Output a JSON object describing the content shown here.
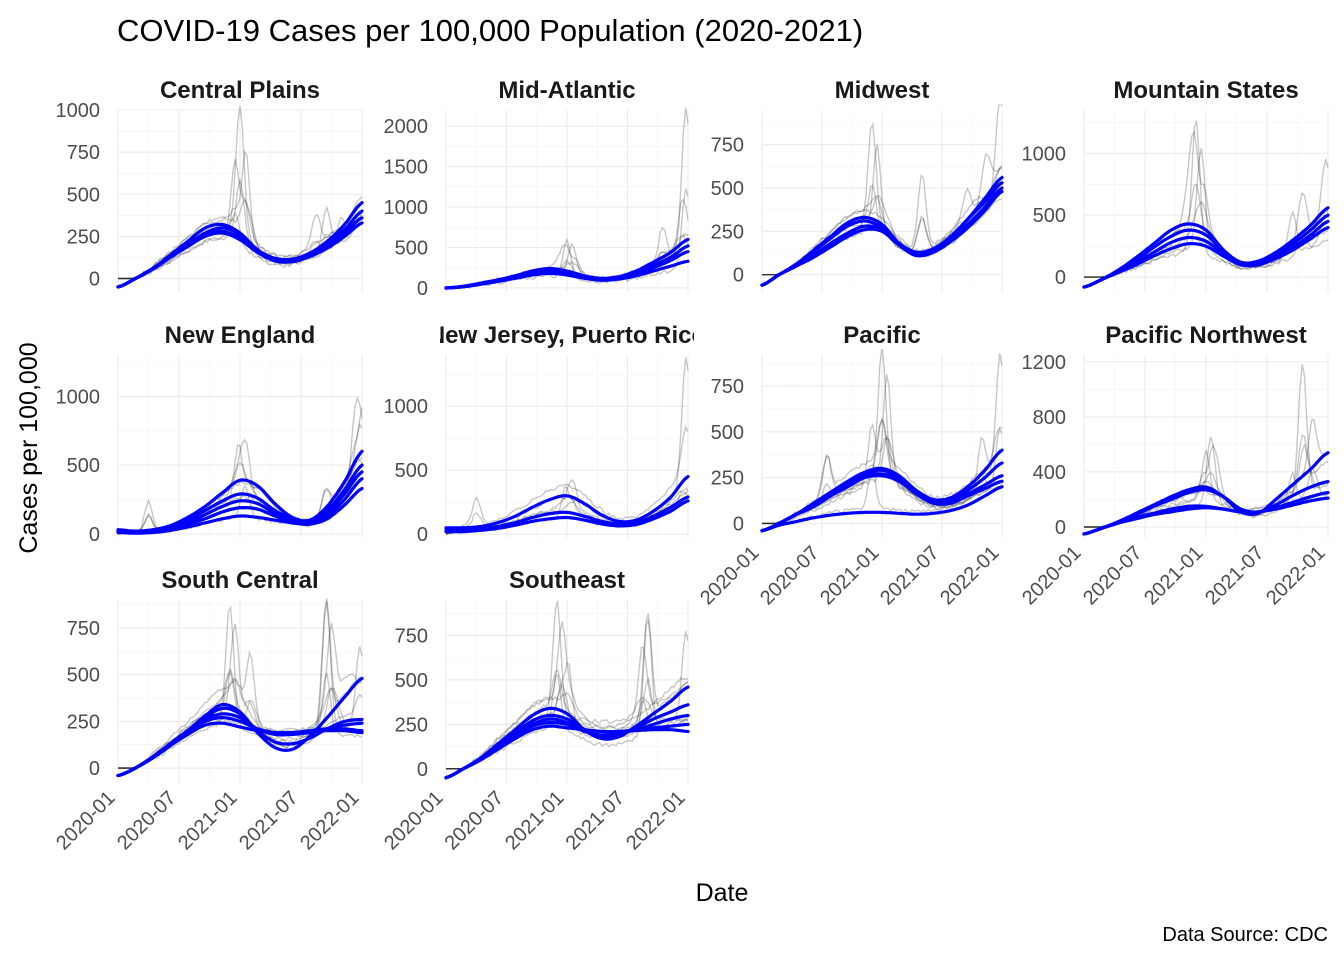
{
  "chart_data": {
    "type": "line",
    "title": "COVID-19 Cases per 100,000 Population (2020-2021)",
    "xlabel": "Date",
    "ylabel": "Cases per 100,000",
    "caption": "Data Source: CDC",
    "x_ticks": [
      "2020-01",
      "2020-07",
      "2021-01",
      "2021-07",
      "2022-01"
    ],
    "x_range": [
      "2020-01",
      "2022-01"
    ],
    "grid": true,
    "layout": "facet grid 4 columns, 3 rows",
    "colors": {
      "raw_series": "#000000",
      "smoothed_trend": "#0000ff"
    },
    "facets": [
      {
        "name": "Central Plains",
        "ylim": [
          -80,
          1000
        ],
        "y_ticks": [
          0,
          250,
          500,
          750,
          1000
        ],
        "raw_peaks": [
          [
            12,
            980
          ],
          [
            12.5,
            760
          ],
          [
            11.5,
            640
          ],
          [
            20.5,
            380
          ],
          [
            19.5,
            340
          ],
          [
            22,
            310
          ]
        ],
        "smoothed_series": [
          [
            -50,
            0,
            60,
            140,
            220,
            300,
            320,
            270,
            170,
            110,
            110,
            150,
            220,
            320,
            450
          ],
          [
            -50,
            0,
            60,
            130,
            200,
            270,
            300,
            260,
            170,
            120,
            115,
            150,
            210,
            290,
            400
          ],
          [
            -50,
            0,
            60,
            130,
            200,
            260,
            280,
            240,
            160,
            110,
            110,
            140,
            200,
            270,
            360
          ],
          [
            -50,
            0,
            55,
            125,
            190,
            250,
            270,
            230,
            155,
            105,
            100,
            130,
            180,
            250,
            330
          ]
        ]
      },
      {
        "name": "Mid-Atlantic",
        "ylim": [
          -50,
          2200
        ],
        "y_ticks": [
          0,
          500,
          1000,
          1500,
          2000
        ],
        "raw_peaks": [
          [
            12,
            560
          ],
          [
            12.5,
            520
          ],
          [
            21.5,
            700
          ],
          [
            23.8,
            2150
          ],
          [
            23.5,
            1000
          ]
        ],
        "smoothed_series": [
          [
            0,
            20,
            60,
            100,
            150,
            210,
            240,
            210,
            150,
            120,
            140,
            210,
            320,
            440,
            600
          ],
          [
            0,
            20,
            55,
            95,
            140,
            190,
            210,
            190,
            140,
            110,
            130,
            190,
            280,
            380,
            520
          ],
          [
            0,
            15,
            50,
            90,
            130,
            180,
            200,
            180,
            135,
            105,
            120,
            170,
            250,
            340,
            450
          ],
          [
            0,
            15,
            45,
            80,
            120,
            160,
            180,
            160,
            120,
            95,
            110,
            150,
            210,
            270,
            330
          ]
        ]
      },
      {
        "name": "Midwest",
        "ylim": [
          -100,
          950
        ],
        "y_ticks": [
          0,
          250,
          500,
          750
        ],
        "raw_peaks": [
          [
            11,
            830
          ],
          [
            11.5,
            700
          ],
          [
            16,
            550
          ],
          [
            23.8,
            930
          ],
          [
            20.5,
            420
          ],
          [
            22.5,
            600
          ]
        ],
        "smoothed_series": [
          [
            -60,
            0,
            60,
            140,
            220,
            300,
            330,
            290,
            180,
            120,
            140,
            210,
            320,
            440,
            560
          ],
          [
            -60,
            0,
            60,
            130,
            210,
            280,
            310,
            270,
            180,
            130,
            150,
            220,
            320,
            420,
            530
          ],
          [
            -60,
            0,
            50,
            110,
            180,
            240,
            280,
            260,
            180,
            120,
            140,
            200,
            290,
            390,
            500
          ],
          [
            -60,
            0,
            50,
            100,
            160,
            220,
            260,
            250,
            170,
            110,
            130,
            190,
            270,
            370,
            480
          ]
        ]
      },
      {
        "name": "Mountain States",
        "ylim": [
          -120,
          1350
        ],
        "y_ticks": [
          0,
          500,
          1000
        ],
        "raw_peaks": [
          [
            11,
            1250
          ],
          [
            11.5,
            1000
          ],
          [
            20.5,
            480
          ],
          [
            21.5,
            620
          ],
          [
            23.8,
            850
          ]
        ],
        "smoothed_series": [
          [
            -80,
            -20,
            60,
            160,
            270,
            380,
            430,
            380,
            220,
            120,
            130,
            200,
            300,
            420,
            560
          ],
          [
            -80,
            -20,
            50,
            140,
            240,
            330,
            380,
            340,
            210,
            120,
            120,
            180,
            270,
            380,
            500
          ],
          [
            -80,
            -20,
            50,
            120,
            200,
            280,
            320,
            290,
            190,
            110,
            110,
            160,
            240,
            340,
            450
          ],
          [
            -80,
            -20,
            40,
            100,
            170,
            230,
            270,
            250,
            170,
            100,
            100,
            150,
            220,
            310,
            400
          ]
        ]
      },
      {
        "name": "New England",
        "ylim": [
          -30,
          1300
        ],
        "y_ticks": [
          0,
          500,
          1000
        ],
        "raw_peaks": [
          [
            3,
            230
          ],
          [
            12,
            800
          ],
          [
            12.5,
            600
          ],
          [
            20.5,
            300
          ],
          [
            23.8,
            1270
          ],
          [
            23.5,
            850
          ]
        ],
        "smoothed_series": [
          [
            30,
            20,
            30,
            60,
            120,
            200,
            300,
            390,
            350,
            220,
            120,
            100,
            200,
            380,
            600
          ],
          [
            25,
            15,
            25,
            50,
            100,
            170,
            240,
            290,
            260,
            170,
            110,
            90,
            170,
            320,
            500
          ],
          [
            20,
            10,
            20,
            40,
            80,
            140,
            200,
            240,
            220,
            150,
            100,
            90,
            150,
            290,
            450
          ],
          [
            15,
            10,
            15,
            35,
            70,
            110,
            160,
            190,
            180,
            130,
            90,
            80,
            130,
            250,
            400
          ],
          [
            10,
            5,
            10,
            25,
            50,
            80,
            110,
            130,
            120,
            100,
            80,
            70,
            110,
            210,
            330
          ]
        ]
      },
      {
        "name": "New Jersey, Puerto Rico",
        "ylim": [
          -30,
          1400
        ],
        "y_ticks": [
          0,
          500,
          1000
        ],
        "raw_peaks": [
          [
            3,
            270
          ],
          [
            12,
            430
          ],
          [
            12.5,
            380
          ],
          [
            23.8,
            1300
          ],
          [
            23.5,
            520
          ]
        ],
        "smoothed_series": [
          [
            50,
            50,
            60,
            90,
            140,
            210,
            270,
            300,
            240,
            150,
            100,
            110,
            180,
            290,
            450
          ],
          [
            30,
            30,
            40,
            60,
            90,
            130,
            160,
            170,
            140,
            100,
            80,
            90,
            140,
            210,
            290
          ],
          [
            20,
            20,
            30,
            45,
            70,
            100,
            120,
            130,
            110,
            80,
            65,
            75,
            120,
            180,
            260
          ]
        ]
      },
      {
        "name": "Pacific",
        "ylim": [
          -80,
          920
        ],
        "y_ticks": [
          0,
          250,
          500,
          750
        ],
        "raw_peaks": [
          [
            12,
            920
          ],
          [
            12.5,
            780
          ],
          [
            11,
            500
          ],
          [
            6.5,
            340
          ],
          [
            23.8,
            870
          ],
          [
            22,
            430
          ]
        ],
        "smoothed_series": [
          [
            -40,
            0,
            50,
            110,
            170,
            230,
            280,
            300,
            260,
            180,
            130,
            140,
            200,
            290,
            400
          ],
          [
            -40,
            0,
            50,
            100,
            160,
            220,
            270,
            290,
            250,
            170,
            120,
            130,
            180,
            250,
            330
          ],
          [
            -40,
            0,
            50,
            100,
            160,
            210,
            260,
            270,
            240,
            170,
            120,
            120,
            160,
            210,
            260
          ],
          [
            -40,
            0,
            50,
            90,
            150,
            200,
            250,
            260,
            230,
            160,
            110,
            110,
            150,
            190,
            230
          ],
          [
            -40,
            -10,
            10,
            30,
            45,
            55,
            60,
            60,
            55,
            50,
            55,
            70,
            100,
            150,
            200
          ]
        ]
      },
      {
        "name": "Pacific Northwest",
        "ylim": [
          -80,
          1250
        ],
        "y_ticks": [
          0,
          400,
          800,
          1200
        ],
        "raw_peaks": [
          [
            12.5,
            630
          ],
          [
            12,
            520
          ],
          [
            21.5,
            1150
          ],
          [
            22.5,
            700
          ],
          [
            20.5,
            350
          ]
        ],
        "smoothed_series": [
          [
            -50,
            -10,
            40,
            100,
            160,
            220,
            270,
            290,
            220,
            110,
            100,
            200,
            310,
            420,
            540
          ],
          [
            -50,
            -10,
            40,
            90,
            150,
            200,
            250,
            270,
            220,
            130,
            110,
            160,
            230,
            290,
            330
          ],
          [
            -50,
            -10,
            30,
            70,
            100,
            130,
            150,
            150,
            130,
            110,
            110,
            140,
            180,
            220,
            250
          ],
          [
            -50,
            -10,
            30,
            60,
            90,
            110,
            130,
            140,
            130,
            110,
            110,
            130,
            160,
            190,
            210
          ]
        ]
      },
      {
        "name": "South Central",
        "ylim": [
          -80,
          900
        ],
        "y_ticks": [
          0,
          250,
          500,
          750
        ],
        "raw_peaks": [
          [
            11,
            830
          ],
          [
            11.5,
            720
          ],
          [
            13,
            560
          ],
          [
            20.5,
            850
          ],
          [
            21,
            700
          ],
          [
            23.8,
            620
          ]
        ],
        "smoothed_series": [
          [
            -40,
            0,
            60,
            130,
            200,
            280,
            340,
            300,
            190,
            110,
            100,
            170,
            270,
            380,
            480
          ],
          [
            -40,
            0,
            60,
            130,
            200,
            270,
            320,
            290,
            200,
            140,
            130,
            160,
            210,
            250,
            260
          ],
          [
            -40,
            0,
            60,
            130,
            200,
            260,
            290,
            270,
            210,
            180,
            180,
            190,
            210,
            230,
            240
          ],
          [
            -40,
            0,
            55,
            120,
            190,
            250,
            270,
            250,
            210,
            190,
            190,
            200,
            210,
            210,
            200
          ],
          [
            -40,
            0,
            55,
            120,
            180,
            230,
            240,
            220,
            200,
            190,
            190,
            195,
            200,
            200,
            190
          ]
        ]
      },
      {
        "name": "Southeast",
        "ylim": [
          -80,
          950
        ],
        "y_ticks": [
          0,
          250,
          500,
          750
        ],
        "raw_peaks": [
          [
            11,
            900
          ],
          [
            12,
            650
          ],
          [
            11.5,
            740
          ],
          [
            20,
            820
          ],
          [
            19.5,
            640
          ],
          [
            23.8,
            720
          ]
        ],
        "smoothed_series": [
          [
            -50,
            0,
            60,
            140,
            220,
            300,
            340,
            310,
            220,
            170,
            180,
            240,
            310,
            380,
            460
          ],
          [
            -50,
            0,
            60,
            130,
            200,
            270,
            300,
            280,
            220,
            180,
            190,
            230,
            280,
            320,
            360
          ],
          [
            -50,
            0,
            55,
            125,
            190,
            250,
            280,
            260,
            210,
            190,
            200,
            220,
            250,
            280,
            300
          ],
          [
            -50,
            0,
            50,
            115,
            180,
            240,
            260,
            250,
            220,
            210,
            210,
            220,
            230,
            240,
            250
          ],
          [
            -50,
            0,
            50,
            110,
            170,
            220,
            240,
            230,
            220,
            210,
            210,
            215,
            220,
            220,
            210
          ]
        ]
      }
    ]
  }
}
